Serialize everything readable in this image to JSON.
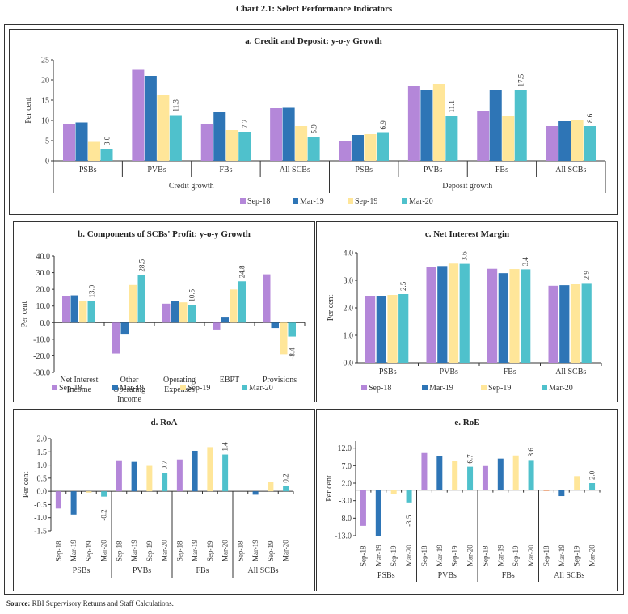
{
  "figure": {
    "title": "Chart 2.1: Select Performance Indicators",
    "source_label": "Source:",
    "source_text": "RBI Supervisory Returns and Staff Calculations."
  },
  "series_colors": {
    "Sep-18": "#b487d9",
    "Mar-19": "#2e75b6",
    "Sep-19": "#ffe699",
    "Mar-20": "#4fc1cc"
  },
  "chart_data": [
    {
      "id": "a",
      "type": "bar",
      "title": "a. Credit and Deposit: y-o-y Growth",
      "ylabel": "Per cent",
      "ylim": [
        0,
        25
      ],
      "yticks": [
        0,
        5,
        10,
        15,
        20,
        25
      ],
      "ytick_labels": [
        "0",
        "5",
        "10",
        "15",
        "20",
        "25"
      ],
      "groups": [
        "Credit growth",
        "Deposit growth"
      ],
      "categories": [
        "PSBs",
        "PVBs",
        "FBs",
        "All SCBs",
        "PSBs",
        "PVBs",
        "FBs",
        "All SCBs"
      ],
      "legend": [
        "Sep-18",
        "Mar-19",
        "Sep-19",
        "Mar-20"
      ],
      "legend_position": "bottom",
      "series": [
        {
          "name": "Sep-18",
          "values": [
            9.0,
            22.5,
            9.2,
            13.0,
            5.0,
            18.4,
            12.2,
            8.6
          ]
        },
        {
          "name": "Mar-19",
          "values": [
            9.5,
            21.0,
            12.0,
            13.1,
            6.4,
            17.5,
            17.5,
            9.8
          ]
        },
        {
          "name": "Sep-19",
          "values": [
            4.7,
            16.4,
            7.6,
            8.6,
            6.6,
            19.0,
            11.2,
            10.1
          ]
        },
        {
          "name": "Mar-20",
          "values": [
            3.0,
            11.3,
            7.2,
            5.9,
            6.9,
            11.1,
            17.5,
            8.6
          ]
        }
      ],
      "data_labels_series": "Mar-20"
    },
    {
      "id": "b",
      "type": "bar",
      "title": "b. Components of SCBs' Profit: y-o-y Growth",
      "ylabel": "Per cent",
      "ylim": [
        -30,
        40
      ],
      "yticks": [
        -30,
        -20,
        -10,
        0,
        10,
        20,
        30,
        40
      ],
      "ytick_labels": [
        "-30.0",
        "-20.0",
        "-10.0",
        "0.0",
        "10.0",
        "20.0",
        "30.0",
        "40.0"
      ],
      "categories": [
        "Net Interest Income",
        "Other Operating Income",
        "Operating Expenses",
        "EBPT",
        "Provisions"
      ],
      "category_lines": [
        [
          "Net Interest",
          "Income"
        ],
        [
          "Other",
          "Operating",
          "Income"
        ],
        [
          "Operating",
          "Expenses"
        ],
        [
          "EBPT"
        ],
        [
          "Provisions"
        ]
      ],
      "legend": [
        "Sep-18",
        "Mar-19",
        "Sep-19",
        "Mar-20"
      ],
      "legend_position": "bottom",
      "series": [
        {
          "name": "Sep-18",
          "values": [
            15.7,
            -18.6,
            11.4,
            -4.2,
            29.0
          ]
        },
        {
          "name": "Mar-19",
          "values": [
            16.4,
            -7.2,
            13.0,
            3.5,
            -3.3
          ]
        },
        {
          "name": "Sep-19",
          "values": [
            13.2,
            22.6,
            12.2,
            19.9,
            -19.0
          ]
        },
        {
          "name": "Mar-20",
          "values": [
            13.0,
            28.5,
            10.5,
            24.8,
            -8.4
          ]
        }
      ],
      "data_labels_series": "Mar-20"
    },
    {
      "id": "c",
      "type": "bar",
      "title": "c. Net Interest Margin",
      "ylabel": "Per cent",
      "ylim": [
        0,
        4
      ],
      "yticks": [
        0,
        1,
        2,
        3,
        4
      ],
      "ytick_labels": [
        "0.0",
        "1.0",
        "2.0",
        "3.0",
        "4.0"
      ],
      "categories": [
        "PSBs",
        "PVBs",
        "FBs",
        "All SCBs"
      ],
      "legend": [
        "Sep-18",
        "Mar-19",
        "Sep-19",
        "Mar-20"
      ],
      "legend_position": "bottom",
      "series": [
        {
          "name": "Sep-18",
          "values": [
            2.43,
            3.48,
            3.42,
            2.8
          ]
        },
        {
          "name": "Mar-19",
          "values": [
            2.44,
            3.52,
            3.26,
            2.82
          ]
        },
        {
          "name": "Sep-19",
          "values": [
            2.47,
            3.61,
            3.41,
            2.88
          ]
        },
        {
          "name": "Mar-20",
          "values": [
            2.5,
            3.6,
            3.4,
            2.9
          ]
        }
      ],
      "data_labels_series": "Mar-20",
      "data_labels": [
        "2.5",
        "3.6",
        "3.4",
        "2.9"
      ]
    },
    {
      "id": "d",
      "type": "bar",
      "title": "d. RoA",
      "ylabel": "Per cent",
      "ylim": [
        -1.5,
        2.0
      ],
      "yticks": [
        -1.5,
        -1.0,
        -0.5,
        0,
        0.5,
        1.0,
        1.5,
        2.0
      ],
      "ytick_labels": [
        "-1.5",
        "-1.0",
        "-0.5",
        "0.0",
        "0.5",
        "1.0",
        "1.5",
        "2.0"
      ],
      "groups": [
        "PSBs",
        "PVBs",
        "FBs",
        "All SCBs"
      ],
      "categories": [
        "Sep-18",
        "Mar-19",
        "Sep-19",
        "Mar-20"
      ],
      "series": [
        {
          "name": "PSBs",
          "values": [
            -0.65,
            -0.88,
            -0.05,
            -0.2
          ]
        },
        {
          "name": "PVBs",
          "values": [
            1.18,
            1.12,
            0.97,
            0.7
          ]
        },
        {
          "name": "FBs",
          "values": [
            1.21,
            1.54,
            1.68,
            1.4
          ]
        },
        {
          "name": "All SCBs",
          "values": [
            0.0,
            -0.13,
            0.36,
            0.2
          ]
        }
      ],
      "data_labels": [
        [
          "",
          "",
          "",
          "-0.2"
        ],
        [
          "",
          "",
          "",
          "0.7"
        ],
        [
          "",
          "",
          "",
          "1.4"
        ],
        [
          "",
          "",
          "",
          "0.2"
        ]
      ]
    },
    {
      "id": "e",
      "type": "bar",
      "title": "e. RoE",
      "ylabel": "Per cent",
      "ylim": [
        -13,
        14
      ],
      "yticks": [
        -13,
        -8,
        -3,
        2,
        7,
        12
      ],
      "ytick_labels": [
        "-13.0",
        "-8.0",
        "-3.0",
        "2.0",
        "7.0",
        "12.0"
      ],
      "groups": [
        "PSBs",
        "PVBs",
        "FBs",
        "All SCBs"
      ],
      "categories": [
        "Sep-18",
        "Mar-19",
        "Sep-19",
        "Mar-20"
      ],
      "series": [
        {
          "name": "PSBs",
          "values": [
            -10.2,
            -13.2,
            -1.2,
            -3.5
          ]
        },
        {
          "name": "PVBs",
          "values": [
            10.6,
            9.7,
            8.3,
            6.7
          ]
        },
        {
          "name": "FBs",
          "values": [
            6.9,
            9.0,
            9.9,
            8.6
          ]
        },
        {
          "name": "All SCBs",
          "values": [
            -0.2,
            -1.7,
            4.0,
            2.0
          ]
        }
      ],
      "data_labels": [
        [
          "",
          "",
          "",
          "-3.5"
        ],
        [
          "",
          "",
          "",
          "6.7"
        ],
        [
          "",
          "",
          "",
          "8.6"
        ],
        [
          "",
          "",
          "",
          "2.0"
        ]
      ]
    }
  ]
}
